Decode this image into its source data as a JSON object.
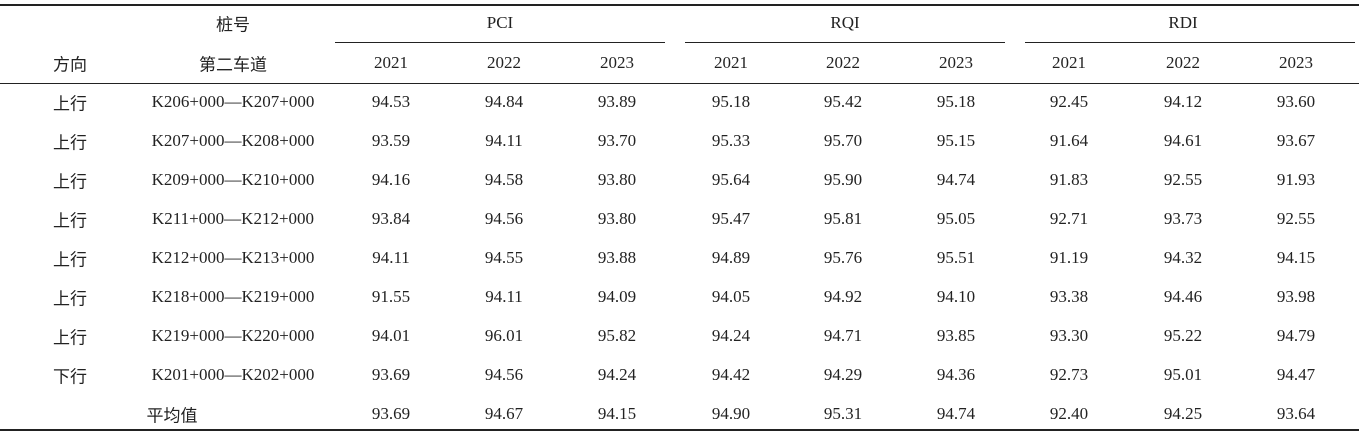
{
  "table": {
    "header": {
      "stake": "桩号",
      "direction": "方向",
      "lane": "第二车道",
      "groups": [
        {
          "name": "PCI",
          "years": [
            "2021",
            "2022",
            "2023"
          ]
        },
        {
          "name": "RQI",
          "years": [
            "2021",
            "2022",
            "2023"
          ]
        },
        {
          "name": "RDI",
          "years": [
            "2021",
            "2022",
            "2023"
          ]
        }
      ]
    },
    "rows": [
      [
        "上行",
        "K206+000—K207+000",
        "94.53",
        "94.84",
        "93.89",
        "95.18",
        "95.42",
        "95.18",
        "92.45",
        "94.12",
        "93.60"
      ],
      [
        "上行",
        "K207+000—K208+000",
        "93.59",
        "94.11",
        "93.70",
        "95.33",
        "95.70",
        "95.15",
        "91.64",
        "94.61",
        "93.67"
      ],
      [
        "上行",
        "K209+000—K210+000",
        "94.16",
        "94.58",
        "93.80",
        "95.64",
        "95.90",
        "94.74",
        "91.83",
        "92.55",
        "91.93"
      ],
      [
        "上行",
        "K211+000—K212+000",
        "93.84",
        "94.56",
        "93.80",
        "95.47",
        "95.81",
        "95.05",
        "92.71",
        "93.73",
        "92.55"
      ],
      [
        "上行",
        "K212+000—K213+000",
        "94.11",
        "94.55",
        "93.88",
        "94.89",
        "95.76",
        "95.51",
        "91.19",
        "94.32",
        "94.15"
      ],
      [
        "上行",
        "K218+000—K219+000",
        "91.55",
        "94.11",
        "94.09",
        "94.05",
        "94.92",
        "94.10",
        "93.38",
        "94.46",
        "93.98"
      ],
      [
        "上行",
        "K219+000—K220+000",
        "94.01",
        "96.01",
        "95.82",
        "94.24",
        "94.71",
        "93.85",
        "93.30",
        "95.22",
        "94.79"
      ],
      [
        "下行",
        "K201+000—K202+000",
        "93.69",
        "94.56",
        "94.24",
        "94.42",
        "94.29",
        "94.36",
        "92.73",
        "95.01",
        "94.47"
      ]
    ],
    "average": {
      "label": "平均值",
      "values": [
        "93.69",
        "94.67",
        "94.15",
        "94.90",
        "95.31",
        "94.74",
        "92.40",
        "94.25",
        "93.64"
      ]
    }
  }
}
